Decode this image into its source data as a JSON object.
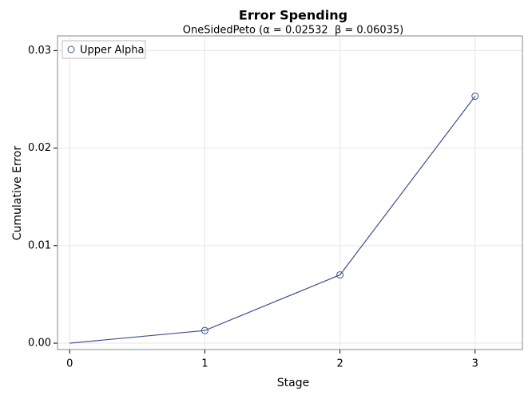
{
  "chart_data": {
    "type": "line",
    "title": "Error Spending",
    "subtitle": "OneSidedPeto (α = 0.02532  β = 0.06035)",
    "x_label": "Stage",
    "y_label": "Cumulative Error",
    "x": [
      0,
      1,
      2,
      3
    ],
    "series": [
      {
        "name": "Upper Alpha",
        "color": "#3f4f8f",
        "values": [
          0,
          0.0013,
          0.007,
          0.02532
        ],
        "markers": [
          false,
          true,
          true,
          true
        ]
      }
    ],
    "xlim": [
      -0.09,
      3.35
    ],
    "xticks": [
      0,
      1,
      2,
      3
    ],
    "ylim": [
      -0.00065,
      0.0315
    ],
    "yticks": [
      {
        "value": 0,
        "label": "0.00"
      },
      0.01,
      0.02,
      0.03
    ],
    "grid": true,
    "legend": "top-left"
  }
}
